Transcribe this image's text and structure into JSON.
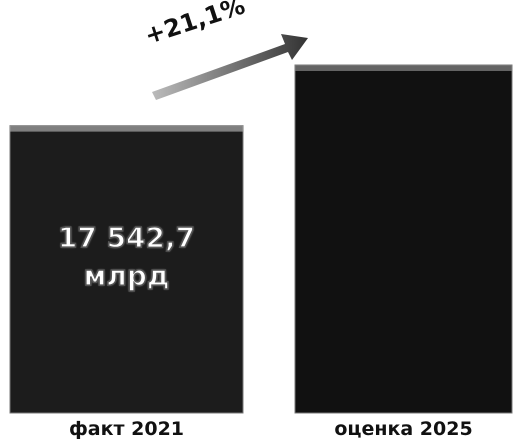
{
  "chart_data": {
    "type": "bar",
    "categories": [
      "факт 2021",
      "оценка 2025"
    ],
    "values": [
      17542.7,
      21244.2
    ],
    "value_labels": [
      "17 542,7\nмлрд",
      null
    ],
    "color": "#111111",
    "annotation": "+21,1%"
  }
}
